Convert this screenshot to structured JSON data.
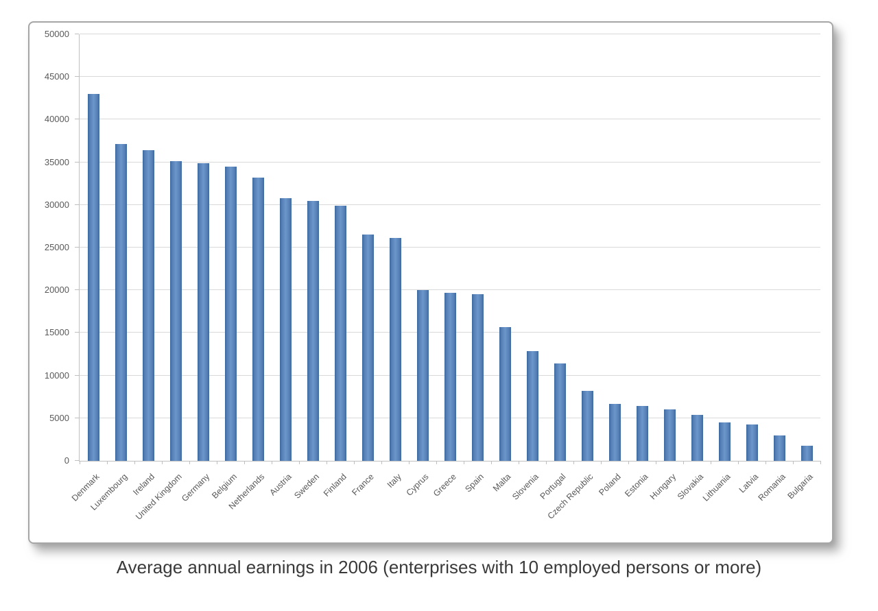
{
  "caption": "Average annual earnings in 2006 (enterprises  with 10 employed persons or more)",
  "chart_data": {
    "type": "bar",
    "title": "Average annual earnings in 2006 (enterprises with 10 employed persons or more)",
    "categories": [
      "Denmark",
      "Luxembourg",
      "Ireland",
      "United Kingdom",
      "Germany",
      "Belgium",
      "Netherlands",
      "Austria",
      "Sweden",
      "Finland",
      "France",
      "Italy",
      "Cyprus",
      "Greece",
      "Spain",
      "Malta",
      "Slovenia",
      "Portugal",
      "Czech Republic",
      "Poland",
      "Estonia",
      "Hungary",
      "Slovakia",
      "Lithuania",
      "Latvia",
      "Romania",
      "Bulgaria"
    ],
    "values": [
      43000,
      37100,
      36400,
      35100,
      34900,
      34500,
      33200,
      30800,
      30500,
      29900,
      26500,
      26100,
      20000,
      19700,
      19500,
      15700,
      12900,
      11400,
      8200,
      6700,
      6400,
      6000,
      5400,
      4500,
      4300,
      3000,
      1800
    ],
    "xlabel": "",
    "ylabel": "",
    "ylim": [
      0,
      50000
    ],
    "ytick_step": 5000,
    "y_tick_labels": [
      "0",
      "5000",
      "10000",
      "15000",
      "20000",
      "25000",
      "30000",
      "35000",
      "40000",
      "45000",
      "50000"
    ],
    "grid": true,
    "legend_position": "none",
    "bar_color": "#4f81bd",
    "grid_color": "#d9d9d9",
    "axis_color": "#bfbfbf",
    "tick_label_color": "#595959"
  }
}
